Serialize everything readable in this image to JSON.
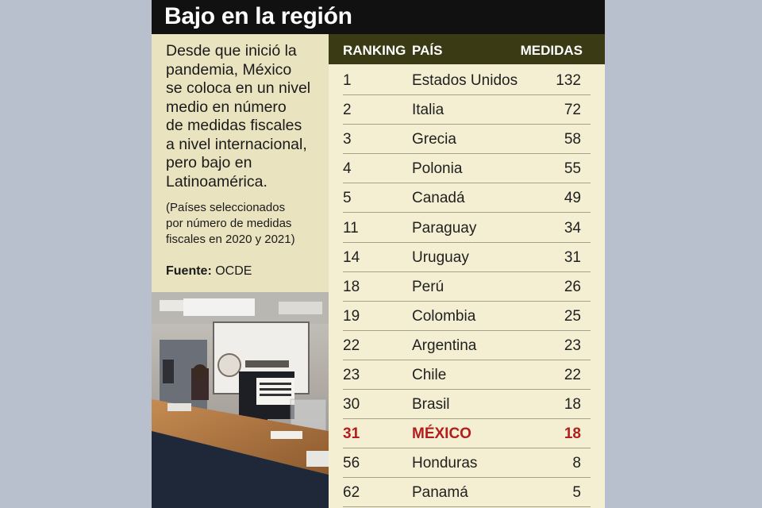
{
  "title": "Bajo en la región",
  "intro": {
    "lead": "Desde que inició la\npandemia, México\nse coloca en un nivel\nmedio en número\nde medidas fiscales\na nivel internacional,\npero bajo en\nLatinoamérica.",
    "note": "(Países seleccionados\npor número de medidas\nfiscales en 2020 y 2021)",
    "source_label": "Fuente:",
    "source_value": "OCDE"
  },
  "colors": {
    "highlight": "#b11e1e",
    "header_bg": "#3a3a14",
    "title_bg": "#111111"
  },
  "chart_data": {
    "type": "table",
    "title": "Bajo en la región",
    "columns": [
      "RANKING",
      "PAÍS",
      "MEDIDAS"
    ],
    "rows": [
      {
        "rank": "1",
        "country": "Estados Unidos",
        "measures": "132"
      },
      {
        "rank": "2",
        "country": "Italia",
        "measures": "72"
      },
      {
        "rank": "3",
        "country": "Grecia",
        "measures": "58"
      },
      {
        "rank": "4",
        "country": "Polonia",
        "measures": "55"
      },
      {
        "rank": "5",
        "country": "Canadá",
        "measures": "49"
      },
      {
        "rank": "11",
        "country": "Paraguay",
        "measures": "34"
      },
      {
        "rank": "14",
        "country": "Uruguay",
        "measures": "31"
      },
      {
        "rank": "18",
        "country": "Perú",
        "measures": "26"
      },
      {
        "rank": "19",
        "country": "Colombia",
        "measures": "25"
      },
      {
        "rank": "22",
        "country": "Argentina",
        "measures": "23"
      },
      {
        "rank": "23",
        "country": "Chile",
        "measures": "22"
      },
      {
        "rank": "30",
        "country": "Brasil",
        "measures": "18"
      },
      {
        "rank": "31",
        "country": "MÉXICO",
        "measures": "18",
        "highlight": true
      },
      {
        "rank": "56",
        "country": "Honduras",
        "measures": "8"
      },
      {
        "rank": "62",
        "country": "Panamá",
        "measures": "5"
      }
    ]
  }
}
